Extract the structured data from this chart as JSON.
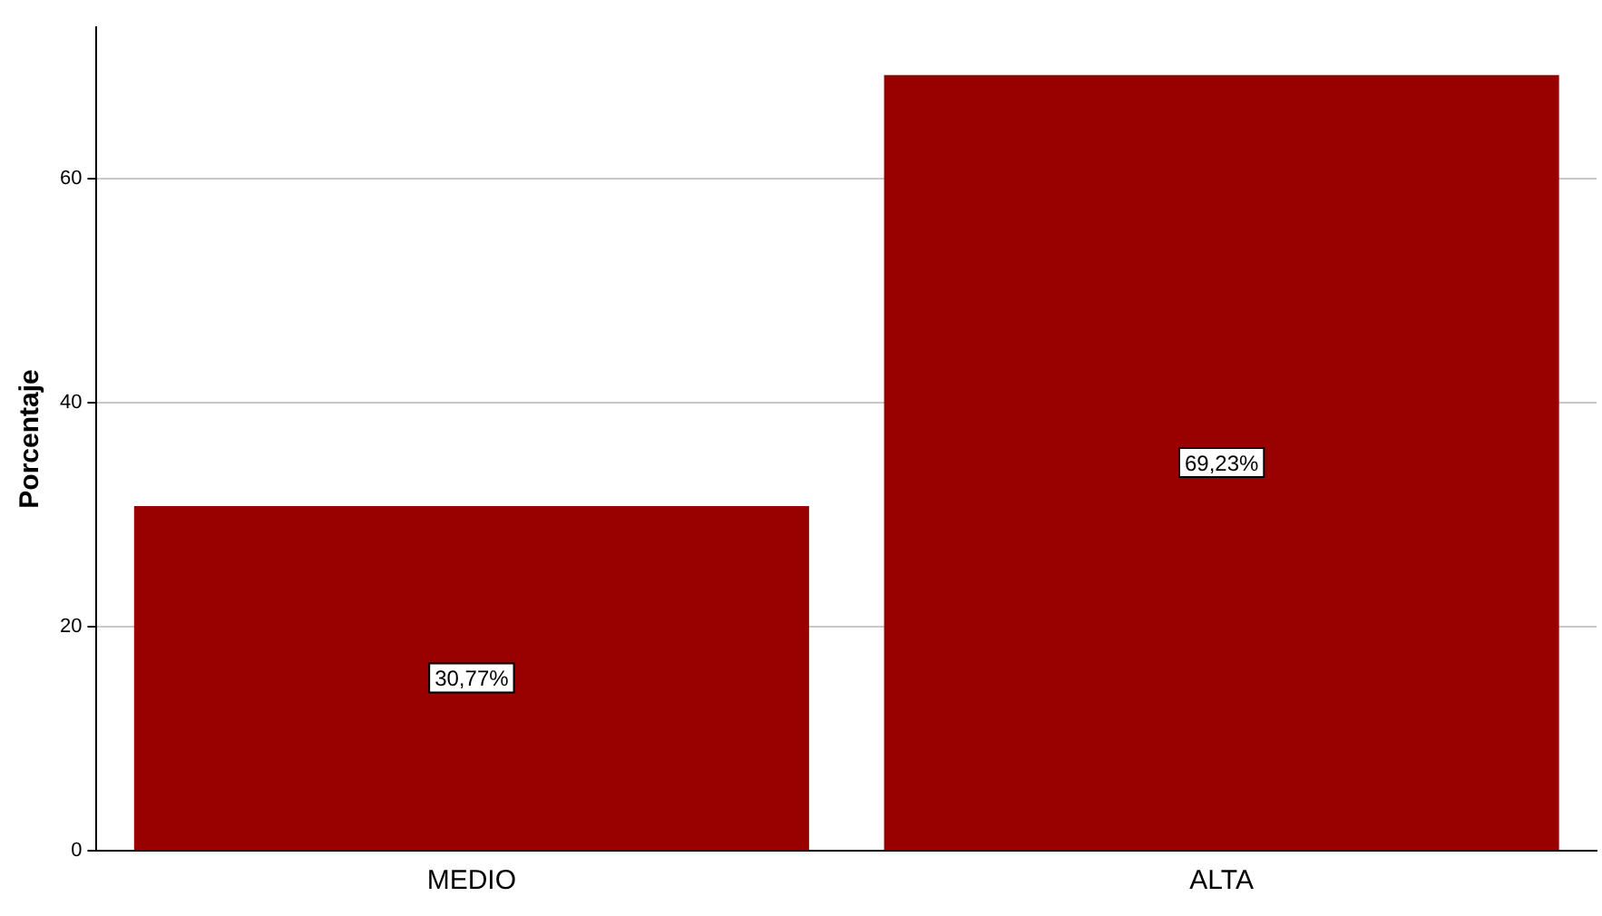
{
  "chart_data": {
    "type": "bar",
    "ylabel": "Porcentaje",
    "categories": [
      "MEDIO",
      "ALTA"
    ],
    "values": [
      30.77,
      69.23
    ],
    "value_labels": [
      "30,77%",
      "69,23%"
    ],
    "color": "#990000",
    "ylim": [
      0,
      73.5
    ],
    "yticks": [
      0,
      20,
      40,
      60
    ],
    "grid": "y",
    "legend": false
  }
}
